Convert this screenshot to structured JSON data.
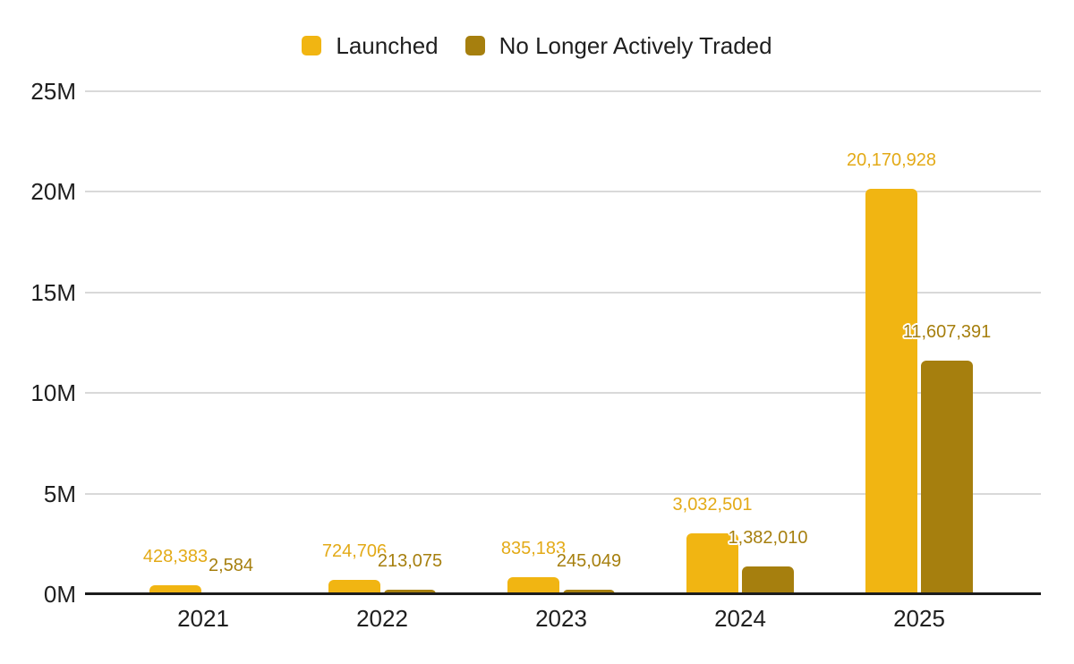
{
  "chart_data": {
    "type": "bar",
    "title": "",
    "categories": [
      "2021",
      "2022",
      "2023",
      "2024",
      "2025"
    ],
    "series": [
      {
        "name": "Launched",
        "color": "#F1B512",
        "label_color": "#E3AA17",
        "values": [
          428383,
          724706,
          835183,
          3032501,
          20170928
        ],
        "data_labels": [
          "428,383",
          "724,706",
          "835,183",
          "3,032,501",
          "20,170,928"
        ]
      },
      {
        "name": "No Longer Actively Traded",
        "color": "#A67F0E",
        "label_color": "#A67F0E",
        "values": [
          2584,
          213075,
          245049,
          1382010,
          11607391
        ],
        "data_labels": [
          "2,584",
          "213,075",
          "245,049",
          "1,382,010",
          "11,607,391"
        ]
      }
    ],
    "xlabel": "",
    "ylabel": "",
    "ylim": [
      0,
      25000000
    ],
    "y_ticks": [
      {
        "value": 0,
        "label": "0M"
      },
      {
        "value": 5000000,
        "label": "5M"
      },
      {
        "value": 10000000,
        "label": "10M"
      },
      {
        "value": 15000000,
        "label": "15M"
      },
      {
        "value": 20000000,
        "label": "20M"
      },
      {
        "value": 25000000,
        "label": "25M"
      }
    ],
    "grid": true,
    "legend_position": "top",
    "axis_line_color": "#1c1c1c",
    "grid_color": "#d9d9d9",
    "axis_text_color": "#1f1f1f"
  }
}
